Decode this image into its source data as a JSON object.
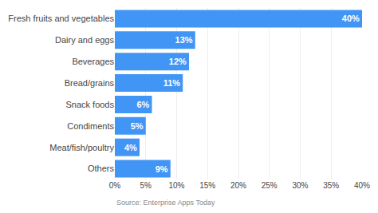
{
  "chart_data": {
    "type": "bar",
    "orientation": "horizontal",
    "categories": [
      "Fresh fruits and vegetables",
      "Dairy and eggs",
      "Beverages",
      "Bread/grains",
      "Snack foods",
      "Condiments",
      "Meat/fish/poultry",
      "Others"
    ],
    "values": [
      40,
      13,
      12,
      11,
      6,
      5,
      4,
      9
    ],
    "value_labels": [
      "40%",
      "13%",
      "12%",
      "11%",
      "6%",
      "5%",
      "4%",
      "9%"
    ],
    "data_labels": true,
    "color": "#4195f5",
    "xlim": [
      0,
      40
    ],
    "xticks": [
      {
        "value": 0,
        "label": "0%"
      },
      {
        "value": 5,
        "label": "5%"
      },
      {
        "value": 10,
        "label": "10%"
      },
      {
        "value": 15,
        "label": "15%"
      },
      {
        "value": 20,
        "label": "20%"
      },
      {
        "value": 25,
        "label": "25%"
      },
      {
        "value": 30,
        "label": "30%"
      },
      {
        "value": 35,
        "label": "35%"
      },
      {
        "value": 40,
        "label": "40%"
      }
    ],
    "grid": true,
    "annotations": [
      "Source: Enterprise Apps Today"
    ]
  }
}
